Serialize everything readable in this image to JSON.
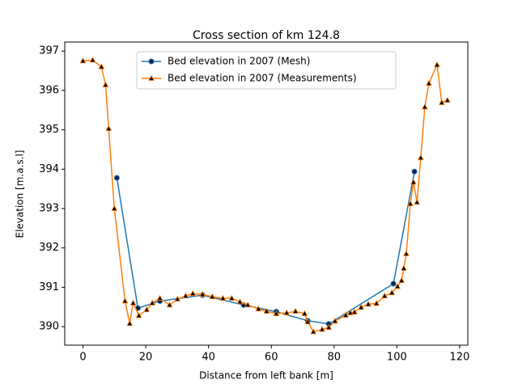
{
  "chart_data": {
    "type": "line",
    "title": "Cross section of km 124.8",
    "x_label": "Distance from left bank [m]",
    "y_label": "Elevation [m.a.s.l]",
    "xlim": [
      -5.8,
      122.6
    ],
    "ylim": [
      389.53,
      397.23
    ],
    "xticks": [
      0,
      20,
      40,
      60,
      80,
      100,
      120
    ],
    "yticks": [
      390,
      391,
      392,
      393,
      394,
      395,
      396,
      397
    ],
    "legend": "upper center",
    "series": [
      {
        "name": "Bed elevation in 2007 (Mesh)",
        "color": "#1f77b4",
        "marker": "circle",
        "marker_color": "#0b1f4a",
        "x": [
          10.8,
          17.5,
          24.5,
          38.1,
          51.2,
          61.6,
          71.6,
          78.3,
          98.9,
          105.6
        ],
        "values": [
          393.78,
          390.47,
          390.65,
          390.8,
          390.55,
          390.38,
          390.15,
          390.07,
          391.09,
          393.94
        ]
      },
      {
        "name": "Bed elevation in 2007 (Measurements)",
        "color": "#ff7f0e",
        "marker": "triangle",
        "marker_color": "#000000",
        "x": [
          0,
          3.1,
          5.9,
          7.2,
          8.2,
          10.0,
          13.4,
          14.9,
          16.0,
          17.8,
          20.3,
          22.1,
          24.5,
          27.6,
          30.1,
          32.7,
          35.0,
          38.1,
          41.2,
          44.6,
          47.4,
          50.0,
          52.5,
          55.9,
          58.5,
          61.6,
          64.9,
          67.7,
          70.6,
          71.6,
          73.4,
          76.2,
          78.3,
          80.3,
          83.7,
          85.2,
          86.5,
          88.6,
          90.9,
          93.5,
          96.1,
          98.4,
          100.2,
          101.5,
          102.2,
          103.0,
          104.3,
          105.3,
          106.4,
          107.6,
          108.9,
          110.2,
          112.8,
          114.3,
          116.1
        ],
        "values": [
          396.75,
          396.77,
          396.6,
          396.14,
          395.03,
          393.0,
          390.65,
          390.08,
          390.6,
          390.28,
          390.43,
          390.6,
          390.72,
          390.55,
          390.7,
          390.78,
          390.84,
          390.82,
          390.76,
          390.72,
          390.72,
          390.63,
          390.55,
          390.45,
          390.39,
          390.33,
          390.35,
          390.39,
          390.33,
          390.12,
          389.87,
          389.93,
          389.98,
          390.14,
          390.29,
          390.35,
          390.37,
          390.49,
          390.57,
          390.59,
          390.78,
          390.86,
          391.02,
          391.17,
          391.48,
          391.85,
          393.12,
          393.67,
          393.16,
          394.29,
          395.58,
          396.18,
          396.65,
          395.69,
          395.75
        ]
      }
    ]
  }
}
